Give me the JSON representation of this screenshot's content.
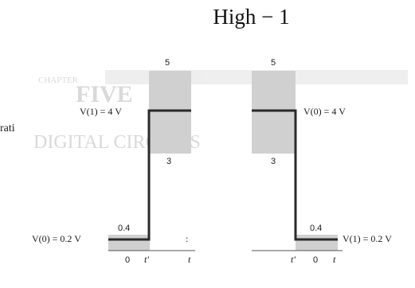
{
  "heading": "High − 1",
  "background_fragments": {
    "chapter_label": "CHAPTER",
    "chapter_word": "FIVE",
    "section_title": "DIGITAL CIRCUITS",
    "side_fragment": "rati"
  },
  "left_panel": {
    "upper_label": "V(1) = 4 V",
    "band_top": "5",
    "band_bottom": "3",
    "lower_label": "V(0) = 0.2 V",
    "lower_band_top": "0.4",
    "axis_ticks": [
      "0",
      "t′",
      "t"
    ],
    "stray_mark": ":"
  },
  "right_panel": {
    "upper_label": "V(0) = 4 V",
    "band_top": "5",
    "band_bottom": "3",
    "lower_label": "V(1) = 0.2 V",
    "lower_band_top": "0.4",
    "axis_ticks": [
      "t′",
      "0",
      "t"
    ]
  },
  "colors": {
    "band_fill": "#d0d0d0",
    "trace": "#2a2a2a",
    "text": "#1a1a1a"
  }
}
